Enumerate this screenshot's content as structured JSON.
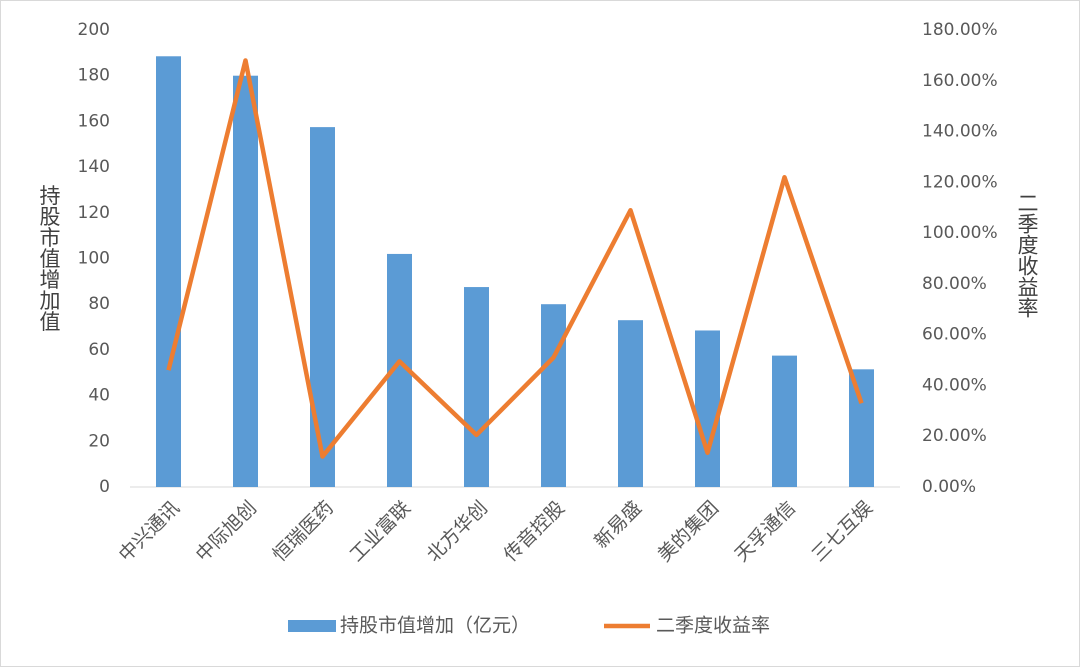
{
  "chart_data": {
    "type": "bar",
    "categories": [
      "中兴通讯",
      "中际旭创",
      "恒瑞医药",
      "工业富联",
      "北方华创",
      "传音控股",
      "新易盛",
      "美的集团",
      "天孚通信",
      "三七互娱"
    ],
    "y_label": "持股市值增加值",
    "y2_label": "二季度收益率",
    "series": [
      {
        "name": "持股市值增加（亿元）",
        "color": "#5b9bd5",
        "values": [
          188.5,
          180,
          157.5,
          102,
          87.5,
          80,
          73,
          68.5,
          57.5,
          51.5
        ]
      },
      {
        "name": "二季度收益率",
        "color": "#ed7d31",
        "type": "line",
        "axis": "y2",
        "values": [
          46,
          168,
          12,
          49.5,
          20.5,
          51,
          109,
          13.5,
          122,
          33
        ]
      }
    ],
    "ylim": [
      0,
      200
    ],
    "yticks": [
      0,
      20,
      40,
      60,
      80,
      100,
      120,
      140,
      160,
      180,
      200
    ],
    "y2lim": [
      0,
      180
    ],
    "y2ticks": [
      {
        "value": 0,
        "label": "0.00%"
      },
      {
        "value": 20,
        "label": "20.00%"
      },
      {
        "value": 40,
        "label": "40.00%"
      },
      {
        "value": 60,
        "label": "60.00%"
      },
      {
        "value": 80,
        "label": "80.00%"
      },
      {
        "value": 100,
        "label": "100.00%"
      },
      {
        "value": 120,
        "label": "120.00%"
      },
      {
        "value": 140,
        "label": "140.00%"
      },
      {
        "value": 160,
        "label": "160.00%"
      },
      {
        "value": 180,
        "label": "180.00%"
      }
    ],
    "grid": false,
    "legend": "bottom"
  }
}
